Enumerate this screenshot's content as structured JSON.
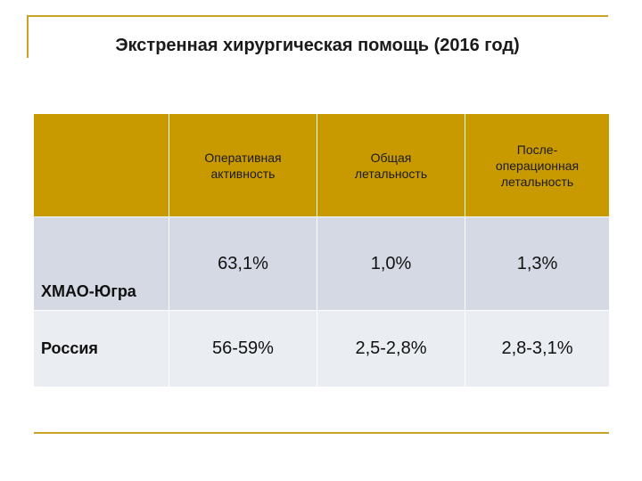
{
  "title": "Экстренная хирургическая помощь (2016 год)",
  "table": {
    "headers": [
      "",
      "Оперативная\nактивность",
      "Общая\nлетальность",
      "После-\nоперационная\nлетальность"
    ],
    "rows": [
      {
        "label": "ХМАО-Югра",
        "values": [
          "63,1%",
          "1,0%",
          "1,3%"
        ]
      },
      {
        "label": "Россия",
        "values": [
          "56-59%",
          "2,5-2,8%",
          "2,8-3,1%"
        ]
      }
    ]
  },
  "colors": {
    "header_bg": "#c99a00",
    "row1_bg": "#d4d9e4",
    "row2_bg": "#eaedf2",
    "accent_line": "#c9a227"
  }
}
